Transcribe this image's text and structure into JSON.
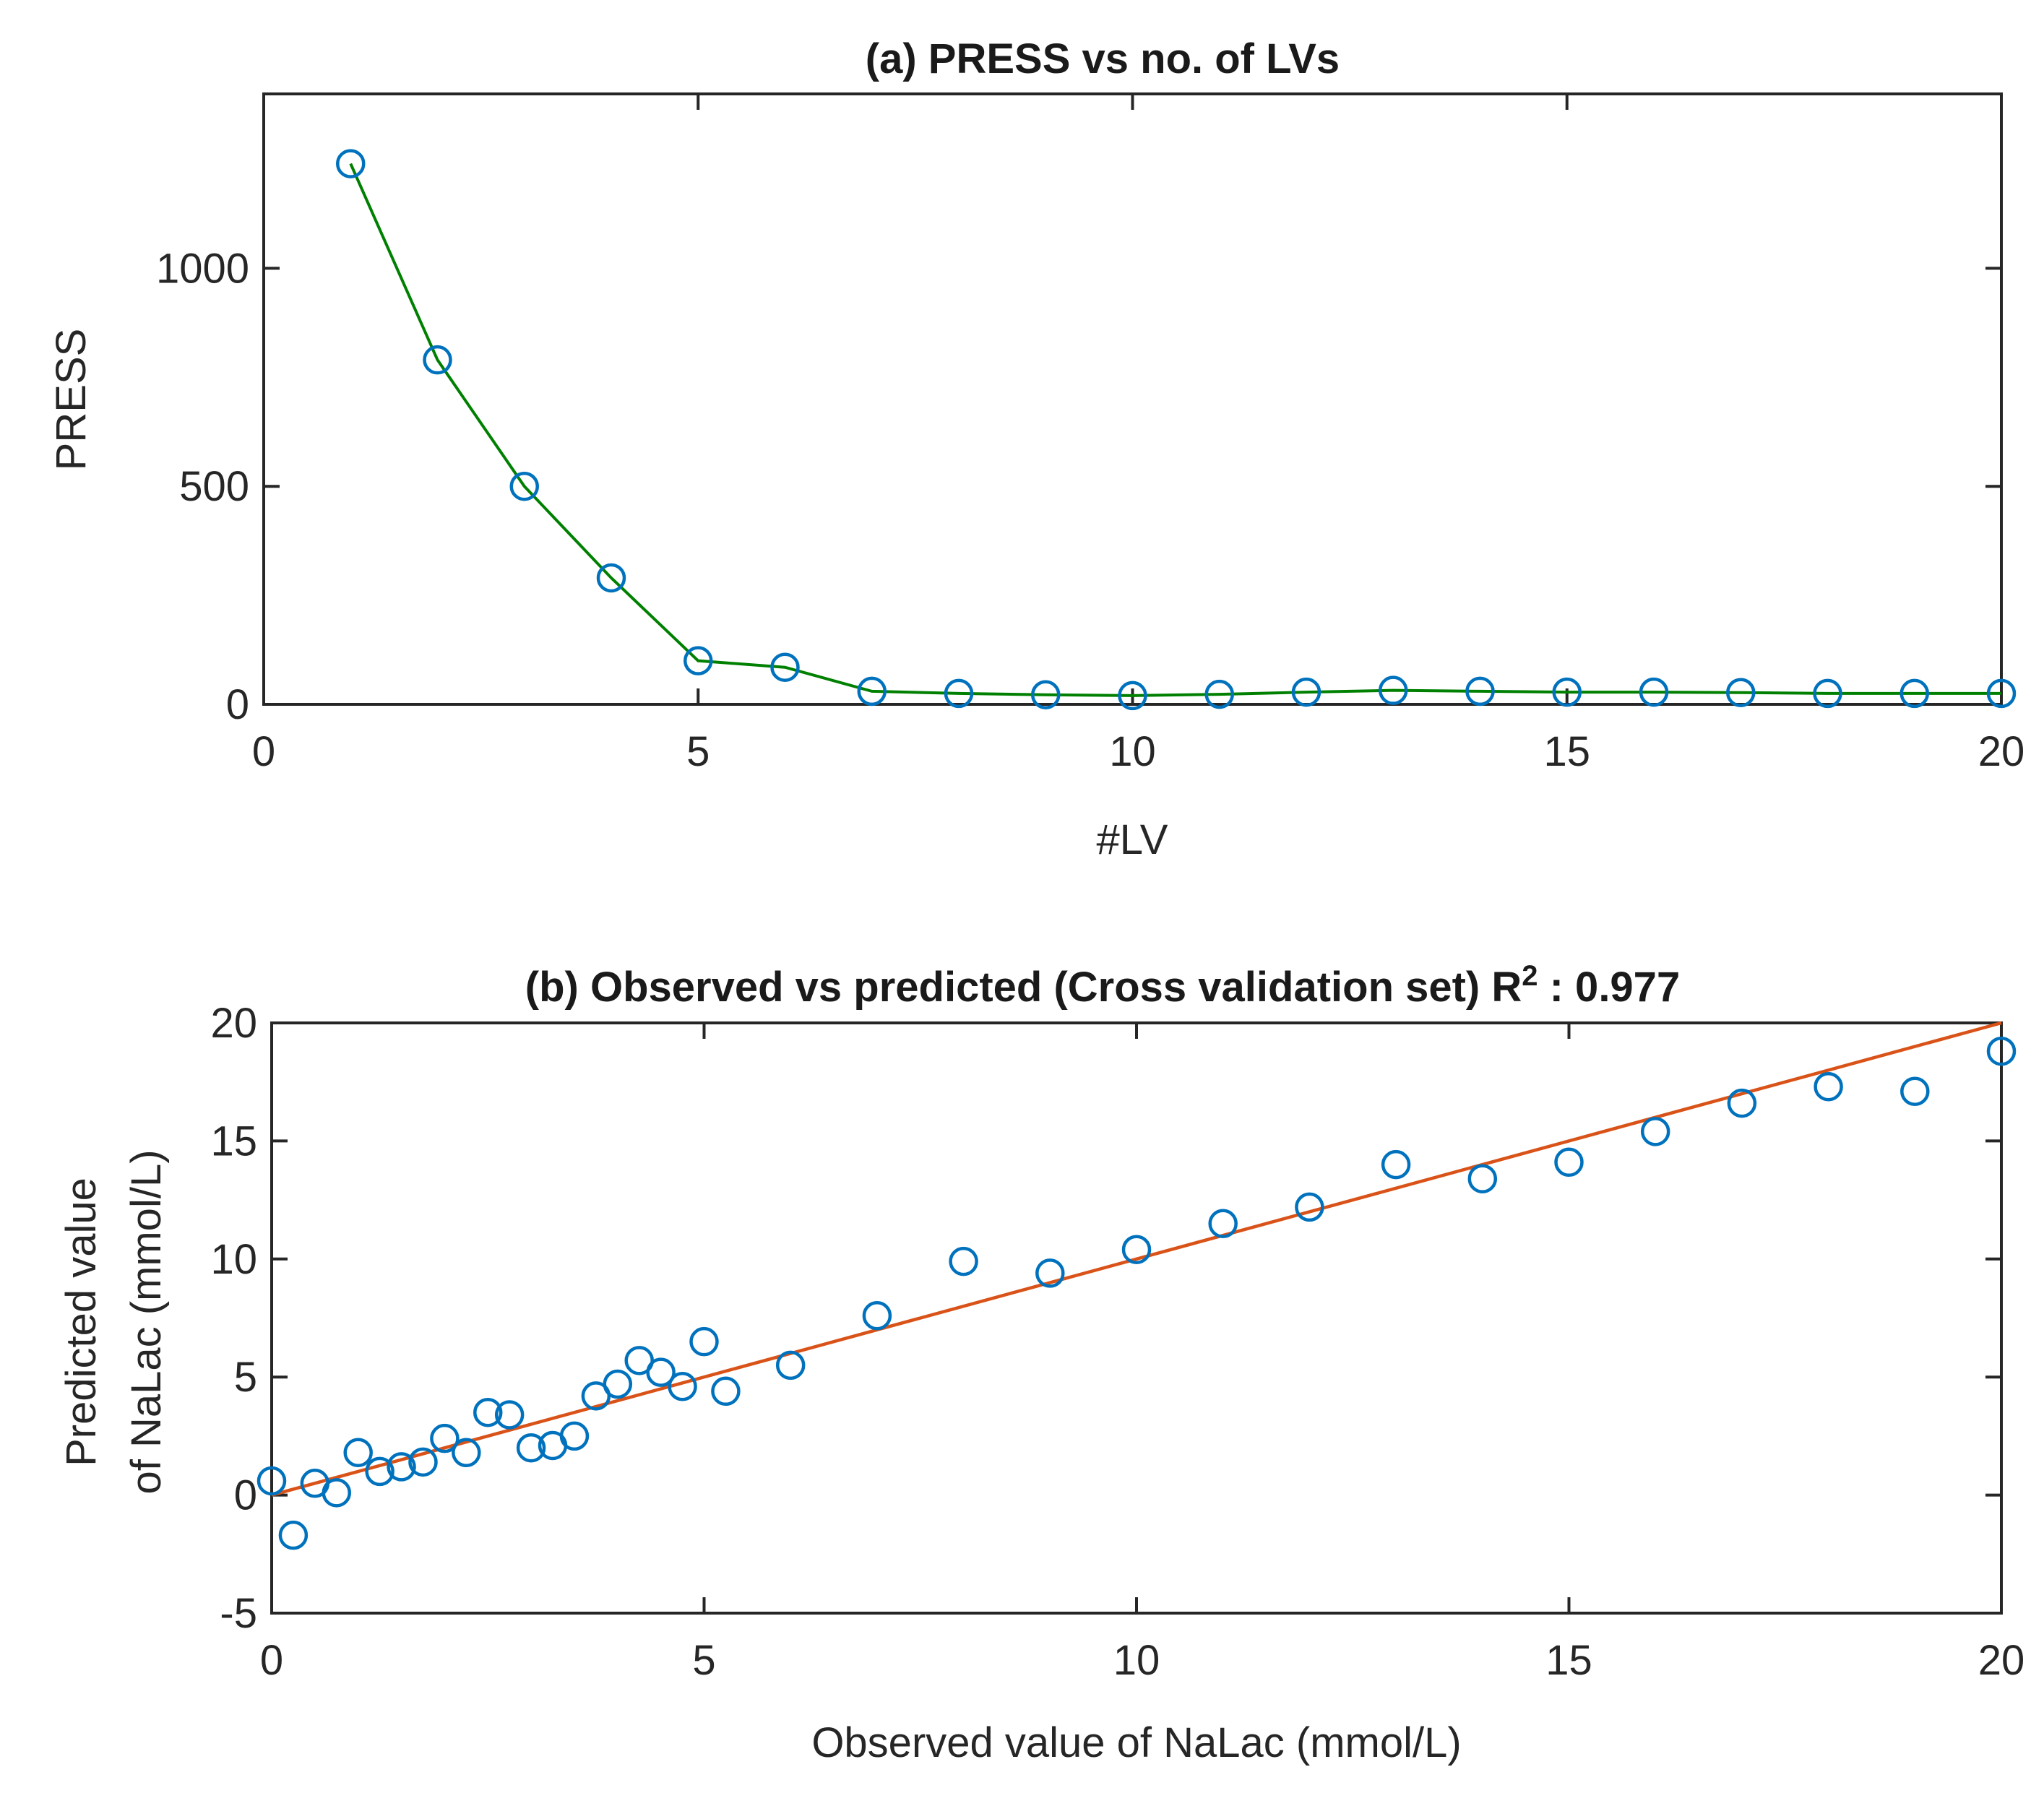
{
  "chart_data": [
    {
      "type": "line",
      "title": "(a) PRESS vs no. of LVs",
      "xlabel": "#LV",
      "ylabel": "PRESS",
      "xlim": [
        0,
        20
      ],
      "ylim": [
        0,
        1400
      ],
      "xticks": [
        0,
        5,
        10,
        15,
        20
      ],
      "yticks": [
        0,
        500,
        1000
      ],
      "grid": false,
      "colors": {
        "line": "#008000",
        "marker": "#0072BD"
      },
      "series": [
        {
          "x": [
            1,
            2,
            3,
            4,
            5,
            6,
            7,
            8,
            9,
            10,
            11,
            12,
            13,
            14,
            15,
            16,
            17,
            18,
            19,
            20
          ],
          "values": [
            1240,
            790,
            500,
            290,
            100,
            85,
            30,
            25,
            22,
            20,
            23,
            28,
            32,
            30,
            28,
            28,
            27,
            25,
            25,
            25
          ]
        }
      ]
    },
    {
      "type": "scatter",
      "title": "(b) Observed vs predicted (Cross validation set) R",
      "title_sup": "2",
      "title_suffix": " : 0.977",
      "xlabel": "Observed value of NaLac (mmol/L)",
      "ylabel_line1": "Predicted value",
      "ylabel_line2": "of NaLac (mmol/L)",
      "xlim": [
        0,
        20
      ],
      "ylim": [
        -5,
        20
      ],
      "xticks": [
        0,
        5,
        10,
        15,
        20
      ],
      "yticks": [
        -5,
        0,
        5,
        10,
        15,
        20
      ],
      "grid": false,
      "colors": {
        "marker": "#0072BD",
        "fit_line": "#D95319"
      },
      "fit_line": {
        "x": [
          0,
          20
        ],
        "y": [
          0,
          20
        ]
      },
      "series": [
        {
          "x": [
            0,
            0.25,
            0.5,
            0.75,
            1,
            1.25,
            1.5,
            1.75,
            2,
            2.25,
            2.5,
            2.75,
            3,
            3.25,
            3.5,
            3.75,
            4,
            4.25,
            4.5,
            4.75,
            5,
            5.25,
            6,
            7,
            8,
            9,
            10,
            11,
            12,
            13,
            14,
            15,
            16,
            17,
            18,
            19,
            20
          ],
          "values": [
            0.6,
            -1.7,
            0.5,
            0.1,
            1.8,
            1.0,
            1.2,
            1.4,
            2.4,
            1.8,
            3.5,
            3.4,
            2.0,
            2.1,
            2.5,
            4.2,
            4.7,
            5.7,
            5.2,
            4.6,
            6.5,
            4.4,
            5.5,
            7.6,
            9.9,
            9.4,
            10.4,
            11.5,
            12.2,
            14.0,
            13.4,
            14.1,
            15.4,
            16.6,
            17.3,
            17.1,
            18.8
          ]
        }
      ]
    }
  ]
}
